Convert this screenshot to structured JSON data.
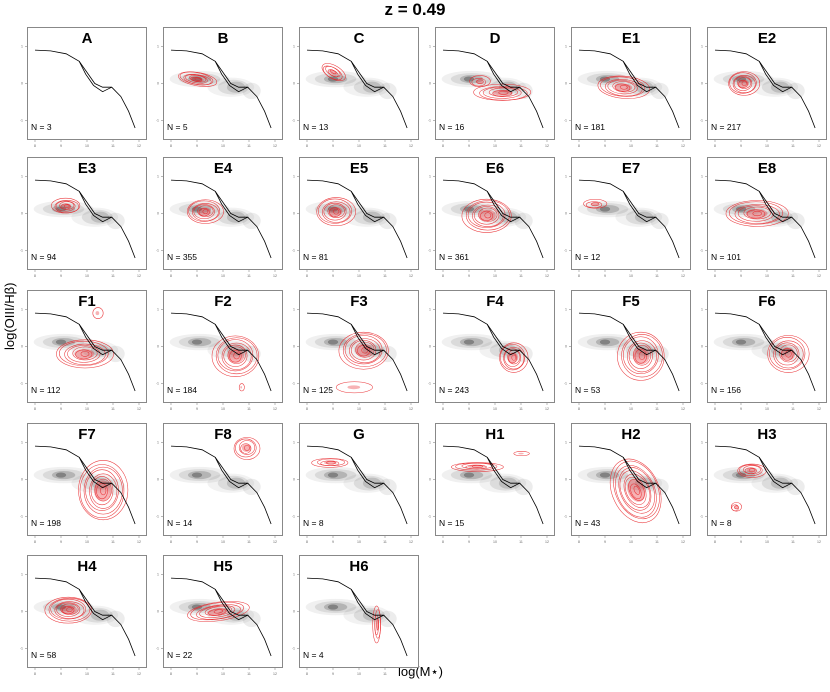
{
  "title": "z = 0.49",
  "xlabel": "log(M⋆)",
  "ylabel": "log(OIII/Hβ)",
  "colors": {
    "background_density": "#444444",
    "subset_contours": "#e8262a",
    "demarcation_line": "#000000"
  },
  "chart_data": {
    "type": "contour",
    "title": "z = 0.49",
    "xlabel": "log(M⋆)",
    "ylabel": "log(OIII/Hβ)",
    "xlim": [
      8,
      12
    ],
    "ylim": [
      -1.2,
      1.2
    ],
    "x_ticks": [
      "8",
      "9",
      "10",
      "11",
      "12"
    ],
    "y_ticks": [
      "-1",
      "0",
      "1"
    ],
    "background": "grey density of the full galaxy sample",
    "panels": [
      {
        "label": "A",
        "n": 3,
        "count_text": "N = 3"
      },
      {
        "label": "B",
        "n": 5,
        "count_text": "N = 5"
      },
      {
        "label": "C",
        "n": 13,
        "count_text": "N = 13"
      },
      {
        "label": "D",
        "n": 16,
        "count_text": "N = 16"
      },
      {
        "label": "E1",
        "n": 181,
        "count_text": "N = 181"
      },
      {
        "label": "E2",
        "n": 217,
        "count_text": "N = 217"
      },
      {
        "label": "E3",
        "n": 94,
        "count_text": "N = 94"
      },
      {
        "label": "E4",
        "n": 355,
        "count_text": "N = 355"
      },
      {
        "label": "E5",
        "n": 81,
        "count_text": "N = 81"
      },
      {
        "label": "E6",
        "n": 361,
        "count_text": "N = 361"
      },
      {
        "label": "E7",
        "n": 12,
        "count_text": "N = 12"
      },
      {
        "label": "E8",
        "n": 101,
        "count_text": "N = 101"
      },
      {
        "label": "F1",
        "n": 112,
        "count_text": "N = 112"
      },
      {
        "label": "F2",
        "n": 184,
        "count_text": "N = 184"
      },
      {
        "label": "F3",
        "n": 125,
        "count_text": "N = 125"
      },
      {
        "label": "F4",
        "n": 243,
        "count_text": "N = 243"
      },
      {
        "label": "F5",
        "n": 53,
        "count_text": "N = 53"
      },
      {
        "label": "F6",
        "n": 156,
        "count_text": "N = 156"
      },
      {
        "label": "F7",
        "n": 198,
        "count_text": "N = 198"
      },
      {
        "label": "F8",
        "n": 14,
        "count_text": "N = 14"
      },
      {
        "label": "G",
        "n": 8,
        "count_text": "N = 8"
      },
      {
        "label": "H1",
        "n": 15,
        "count_text": "N = 15"
      },
      {
        "label": "H2",
        "n": 43,
        "count_text": "N = 43"
      },
      {
        "label": "H3",
        "n": 8,
        "count_text": "N = 8"
      },
      {
        "label": "H4",
        "n": 58,
        "count_text": "N = 58"
      },
      {
        "label": "H5",
        "n": 22,
        "count_text": "N = 22"
      },
      {
        "label": "H6",
        "n": 4,
        "count_text": "N = 4"
      }
    ]
  }
}
